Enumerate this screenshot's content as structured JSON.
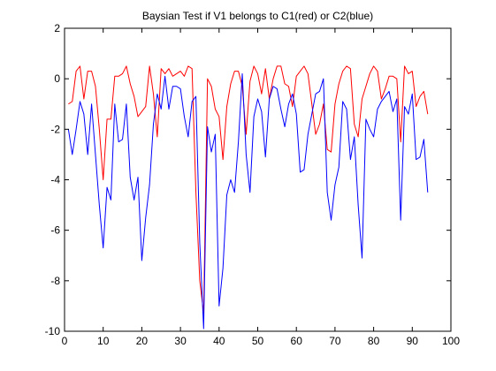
{
  "chart_data": {
    "type": "line",
    "title": "Baysian Test if V1 belongs to C1(red) or C2(blue)",
    "xlabel": "",
    "ylabel": "",
    "xlim": [
      0,
      100
    ],
    "ylim": [
      -10,
      2
    ],
    "xticks": [
      0,
      10,
      20,
      30,
      40,
      50,
      60,
      70,
      80,
      90,
      100
    ],
    "yticks": [
      -10,
      -8,
      -6,
      -4,
      -2,
      0,
      2
    ],
    "grid": false,
    "legend": "none",
    "series": [
      {
        "color": "#ff0000",
        "x": [
          1,
          2,
          3,
          4,
          5,
          6,
          7,
          8,
          9,
          10,
          11,
          12,
          13,
          14,
          15,
          16,
          17,
          18,
          19,
          20,
          21,
          22,
          23,
          24,
          25,
          26,
          27,
          28,
          29,
          30,
          31,
          32,
          33,
          34,
          35,
          36,
          37,
          38,
          39,
          40,
          41,
          42,
          43,
          44,
          45,
          46,
          47,
          48,
          49,
          50,
          51,
          52,
          53,
          54,
          55,
          56,
          57,
          58,
          59,
          60,
          61,
          62,
          63,
          64,
          65,
          66,
          67,
          68,
          69,
          70,
          71,
          72,
          73,
          74,
          75,
          76,
          77,
          78,
          79,
          80,
          81,
          82,
          83,
          84,
          85,
          86,
          87,
          88,
          89,
          90,
          91,
          92,
          93,
          94
        ],
        "y": [
          -1.0,
          -0.9,
          0.3,
          0.5,
          -0.8,
          0.3,
          0.3,
          -0.3,
          -2.0,
          -4.0,
          -1.6,
          -1.6,
          0.1,
          0.1,
          0.2,
          0.5,
          -0.2,
          -0.7,
          -1.5,
          -1.3,
          -1.1,
          0.5,
          -0.6,
          -2.3,
          0.4,
          0.2,
          0.4,
          0.1,
          0.2,
          0.3,
          0.1,
          0.5,
          0.4,
          -4.5,
          -8.0,
          -9.3,
          0.0,
          -0.3,
          -1.2,
          -1.5,
          -3.2,
          -1.1,
          -0.2,
          0.3,
          0.3,
          -0.3,
          -2.2,
          -0.1,
          0.5,
          0.2,
          -0.6,
          0.4,
          -0.8,
          0.0,
          0.5,
          0.5,
          -0.2,
          -0.3,
          -1.1,
          0.1,
          0.3,
          0.5,
          0.2,
          -1.0,
          -2.2,
          -1.8,
          -1.0,
          -2.8,
          -2.9,
          -1.0,
          -0.2,
          0.3,
          0.5,
          0.4,
          -1.8,
          -2.3,
          -0.8,
          -0.3,
          0.2,
          0.5,
          0.3,
          -0.8,
          -0.4,
          0.1,
          0.1,
          0.0,
          -2.5,
          0.5,
          0.2,
          0.3,
          -1.1,
          -0.7,
          -0.5,
          -1.4
        ]
      },
      {
        "color": "#0000ff",
        "x": [
          1,
          2,
          3,
          4,
          5,
          6,
          7,
          8,
          9,
          10,
          11,
          12,
          13,
          14,
          15,
          16,
          17,
          18,
          19,
          20,
          21,
          22,
          23,
          24,
          25,
          26,
          27,
          28,
          29,
          30,
          31,
          32,
          33,
          34,
          35,
          36,
          37,
          38,
          39,
          40,
          41,
          42,
          43,
          44,
          45,
          46,
          47,
          48,
          49,
          50,
          51,
          52,
          53,
          54,
          55,
          56,
          57,
          58,
          59,
          60,
          61,
          62,
          63,
          64,
          65,
          66,
          67,
          68,
          69,
          70,
          71,
          72,
          73,
          74,
          75,
          76,
          77,
          78,
          79,
          80,
          81,
          82,
          83,
          84,
          85,
          86,
          87,
          88,
          89,
          90,
          91,
          92,
          93,
          94
        ],
        "y": [
          -2.0,
          -3.0,
          -2.0,
          -0.9,
          -1.4,
          -3.0,
          -1.0,
          -3.0,
          -5.0,
          -6.7,
          -4.3,
          -4.8,
          -1.0,
          -2.5,
          -2.4,
          -1.0,
          -3.9,
          -4.8,
          -3.9,
          -7.2,
          -5.5,
          -4.2,
          -1.8,
          -0.6,
          -1.2,
          0.1,
          -1.2,
          -0.3,
          -0.3,
          -0.4,
          -1.5,
          -2.3,
          -0.9,
          -0.7,
          -6.5,
          -9.9,
          -1.9,
          -2.9,
          -2.2,
          -9.0,
          -7.5,
          -4.6,
          -4.0,
          -4.5,
          -2.5,
          0.2,
          -3.0,
          -4.5,
          -1.5,
          -0.8,
          -1.3,
          -3.1,
          -0.8,
          -0.3,
          -0.4,
          -1.2,
          -1.9,
          -1.0,
          -0.6,
          -1.4,
          -3.7,
          -3.6,
          -2.2,
          -1.4,
          -0.6,
          -0.5,
          0.0,
          -4.5,
          -5.6,
          -4.2,
          -3.5,
          -0.9,
          -1.2,
          -3.2,
          -2.3,
          -5.0,
          -7.1,
          -1.6,
          -2.0,
          -2.3,
          -1.2,
          -0.9,
          -0.7,
          -0.5,
          -1.3,
          -0.8,
          -5.6,
          -1.1,
          -1.4,
          -0.6,
          -3.2,
          -3.1,
          -2.4,
          -4.5
        ]
      }
    ]
  }
}
